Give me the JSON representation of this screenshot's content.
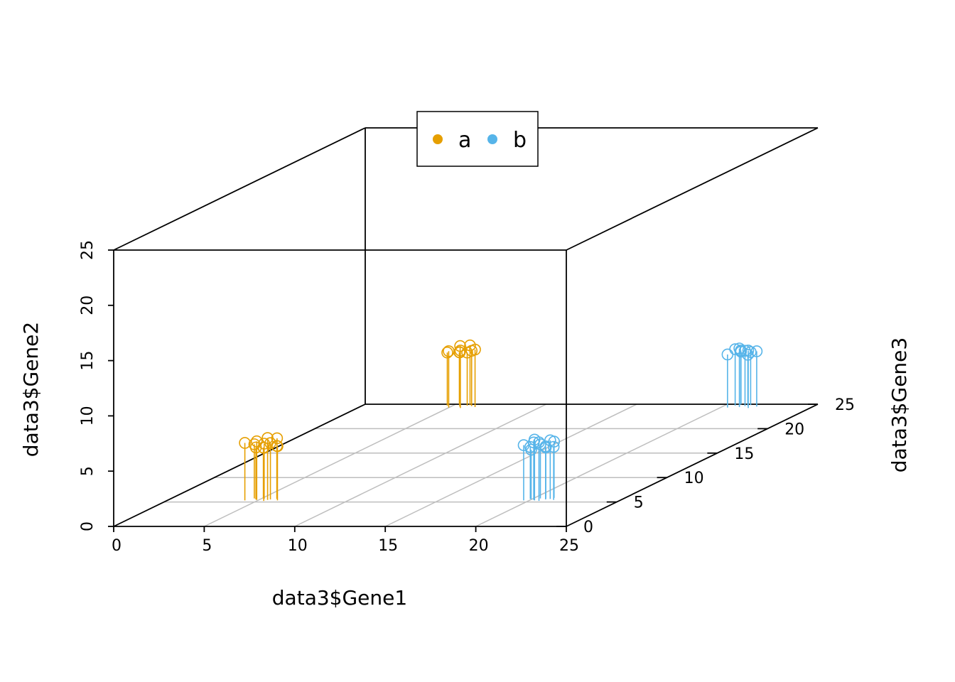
{
  "chart_data": {
    "type": "scatter",
    "projection": "3d-box",
    "xlabel": "data3$Gene1",
    "ylabel": "data3$Gene2",
    "zlabel": "data3$Gene3",
    "xlim": [
      0,
      25
    ],
    "ylim": [
      0,
      25
    ],
    "zlim": [
      0,
      25
    ],
    "x_ticks": [
      "0",
      "5",
      "10",
      "15",
      "20",
      "25"
    ],
    "y_ticks": [
      "0",
      "5",
      "10",
      "15",
      "20",
      "25"
    ],
    "z_ticks": [
      "0",
      "5",
      "10",
      "15",
      "20",
      "25"
    ],
    "grid": true,
    "legend_position": "top-center",
    "series": [
      {
        "name": "a",
        "color": "#E69F00",
        "marker": "open-circle",
        "drop_lines": true,
        "points": [
          {
            "x": 6.8,
            "y": 7.2,
            "z": 0.8
          },
          {
            "x": 7.1,
            "y": 6.9,
            "z": 1.2
          },
          {
            "x": 7.4,
            "y": 7.3,
            "z": 0.9
          },
          {
            "x": 7.7,
            "y": 7.0,
            "z": 1.1
          },
          {
            "x": 7.9,
            "y": 6.8,
            "z": 0.7
          },
          {
            "x": 8.1,
            "y": 7.1,
            "z": 1.0
          },
          {
            "x": 8.3,
            "y": 7.4,
            "z": 1.3
          },
          {
            "x": 8.6,
            "y": 6.9,
            "z": 0.8
          },
          {
            "x": 7.6,
            "y": 6.6,
            "z": 1.2
          },
          {
            "x": 8.0,
            "y": 7.6,
            "z": 0.9
          },
          {
            "x": 8.4,
            "y": 6.8,
            "z": 1.1
          },
          {
            "x": 7.3,
            "y": 6.7,
            "z": 1.0
          },
          {
            "x": 7.2,
            "y": 6.8,
            "z": 20.2
          },
          {
            "x": 7.5,
            "y": 7.1,
            "z": 19.8
          },
          {
            "x": 7.8,
            "y": 7.3,
            "z": 20.4
          },
          {
            "x": 8.0,
            "y": 6.9,
            "z": 20.0
          },
          {
            "x": 8.2,
            "y": 7.2,
            "z": 19.7
          },
          {
            "x": 8.4,
            "y": 7.4,
            "z": 20.3
          },
          {
            "x": 8.6,
            "y": 7.0,
            "z": 20.1
          },
          {
            "x": 8.9,
            "y": 7.2,
            "z": 19.9
          },
          {
            "x": 7.7,
            "y": 6.7,
            "z": 20.5
          },
          {
            "x": 8.3,
            "y": 6.8,
            "z": 20.2
          }
        ]
      },
      {
        "name": "b",
        "color": "#56B4E9",
        "marker": "open-circle",
        "drop_lines": true,
        "points": [
          {
            "x": 22.2,
            "y": 7.0,
            "z": 0.8
          },
          {
            "x": 22.4,
            "y": 6.7,
            "z": 1.1
          },
          {
            "x": 22.7,
            "y": 7.2,
            "z": 0.9
          },
          {
            "x": 22.9,
            "y": 6.9,
            "z": 1.2
          },
          {
            "x": 23.1,
            "y": 7.3,
            "z": 0.7
          },
          {
            "x": 23.3,
            "y": 6.8,
            "z": 1.0
          },
          {
            "x": 23.6,
            "y": 7.1,
            "z": 1.3
          },
          {
            "x": 23.8,
            "y": 6.8,
            "z": 0.9
          },
          {
            "x": 22.5,
            "y": 6.5,
            "z": 1.0
          },
          {
            "x": 23.2,
            "y": 6.6,
            "z": 1.2
          },
          {
            "x": 22.8,
            "y": 7.5,
            "z": 0.8
          },
          {
            "x": 23.5,
            "y": 7.3,
            "z": 1.1
          },
          {
            "x": 22.9,
            "y": 6.8,
            "z": 19.8
          },
          {
            "x": 23.1,
            "y": 7.1,
            "z": 20.2
          },
          {
            "x": 23.3,
            "y": 6.9,
            "z": 20.4
          },
          {
            "x": 23.5,
            "y": 7.3,
            "z": 19.9
          },
          {
            "x": 23.7,
            "y": 7.0,
            "z": 20.1
          },
          {
            "x": 23.9,
            "y": 6.8,
            "z": 20.3
          },
          {
            "x": 24.1,
            "y": 7.2,
            "z": 19.7
          },
          {
            "x": 24.4,
            "y": 7.0,
            "z": 20.0
          },
          {
            "x": 23.2,
            "y": 6.7,
            "z": 20.6
          },
          {
            "x": 23.8,
            "y": 6.6,
            "z": 20.2
          }
        ]
      }
    ]
  }
}
